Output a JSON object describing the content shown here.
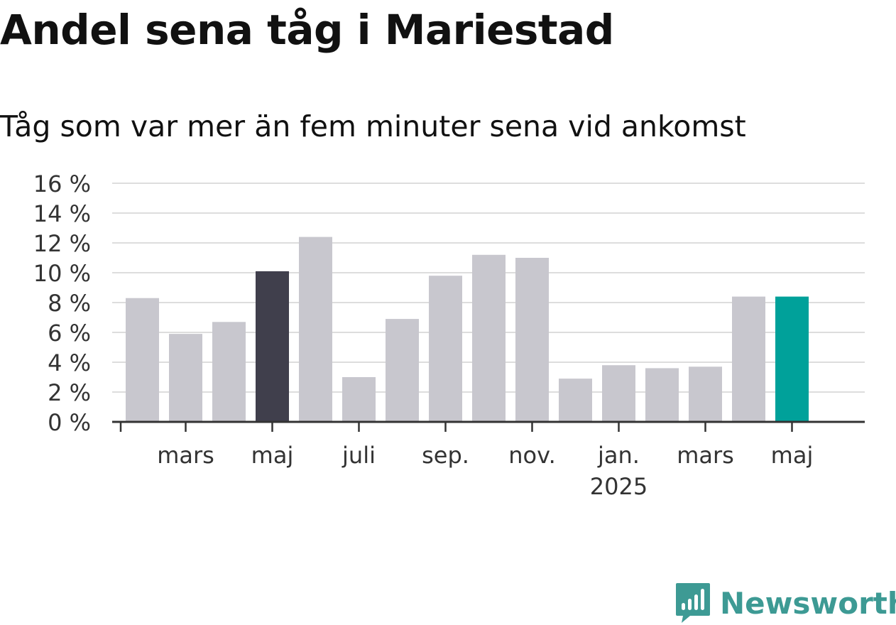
{
  "header": {
    "title": "Andel sena tåg i Mariestad",
    "subtitle": "Tåg som var mer än fem minuter sena vid ankomst"
  },
  "brand": {
    "name": "Newsworthy",
    "color": "#3d9a94"
  },
  "chart_data": {
    "type": "bar",
    "title": "Andel sena tåg i Mariestad",
    "subtitle": "Tåg som var mer än fem minuter sena vid ankomst",
    "xlabel": "",
    "ylabel": "",
    "ylim": [
      0,
      16
    ],
    "y_ticks": [
      0,
      2,
      4,
      6,
      8,
      10,
      12,
      14,
      16
    ],
    "y_tick_suffix": " %",
    "grid": true,
    "legend": "none",
    "categories": [
      "2024-02",
      "2024-03",
      "2024-04",
      "2024-05",
      "2024-06",
      "2024-07",
      "2024-08",
      "2024-09",
      "2024-10",
      "2024-11",
      "2024-12",
      "2025-01",
      "2025-02",
      "2025-03",
      "2025-04",
      "2025-05"
    ],
    "values": [
      8.3,
      5.9,
      6.7,
      10.1,
      12.4,
      3.0,
      6.9,
      9.8,
      11.2,
      11.0,
      2.9,
      3.8,
      3.6,
      3.7,
      8.4,
      8.4
    ],
    "x_tick_labels": [
      {
        "category": "2024-03",
        "label": "mars"
      },
      {
        "category": "2024-05",
        "label": "maj"
      },
      {
        "category": "2024-07",
        "label": "juli"
      },
      {
        "category": "2024-09",
        "label": "sep."
      },
      {
        "category": "2024-11",
        "label": "nov."
      },
      {
        "category": "2025-01",
        "label": "jan.",
        "sublabel": "2025"
      },
      {
        "category": "2025-03",
        "label": "mars"
      },
      {
        "category": "2025-05",
        "label": "maj"
      }
    ],
    "colors": {
      "default": "#c8c7ce",
      "highlight_previous_year": "#403f4c",
      "highlight_latest": "#00a19a",
      "grid": "#dddddd",
      "axis": "#333333"
    },
    "highlights": {
      "2024-05": "highlight_previous_year",
      "2025-05": "highlight_latest"
    }
  }
}
